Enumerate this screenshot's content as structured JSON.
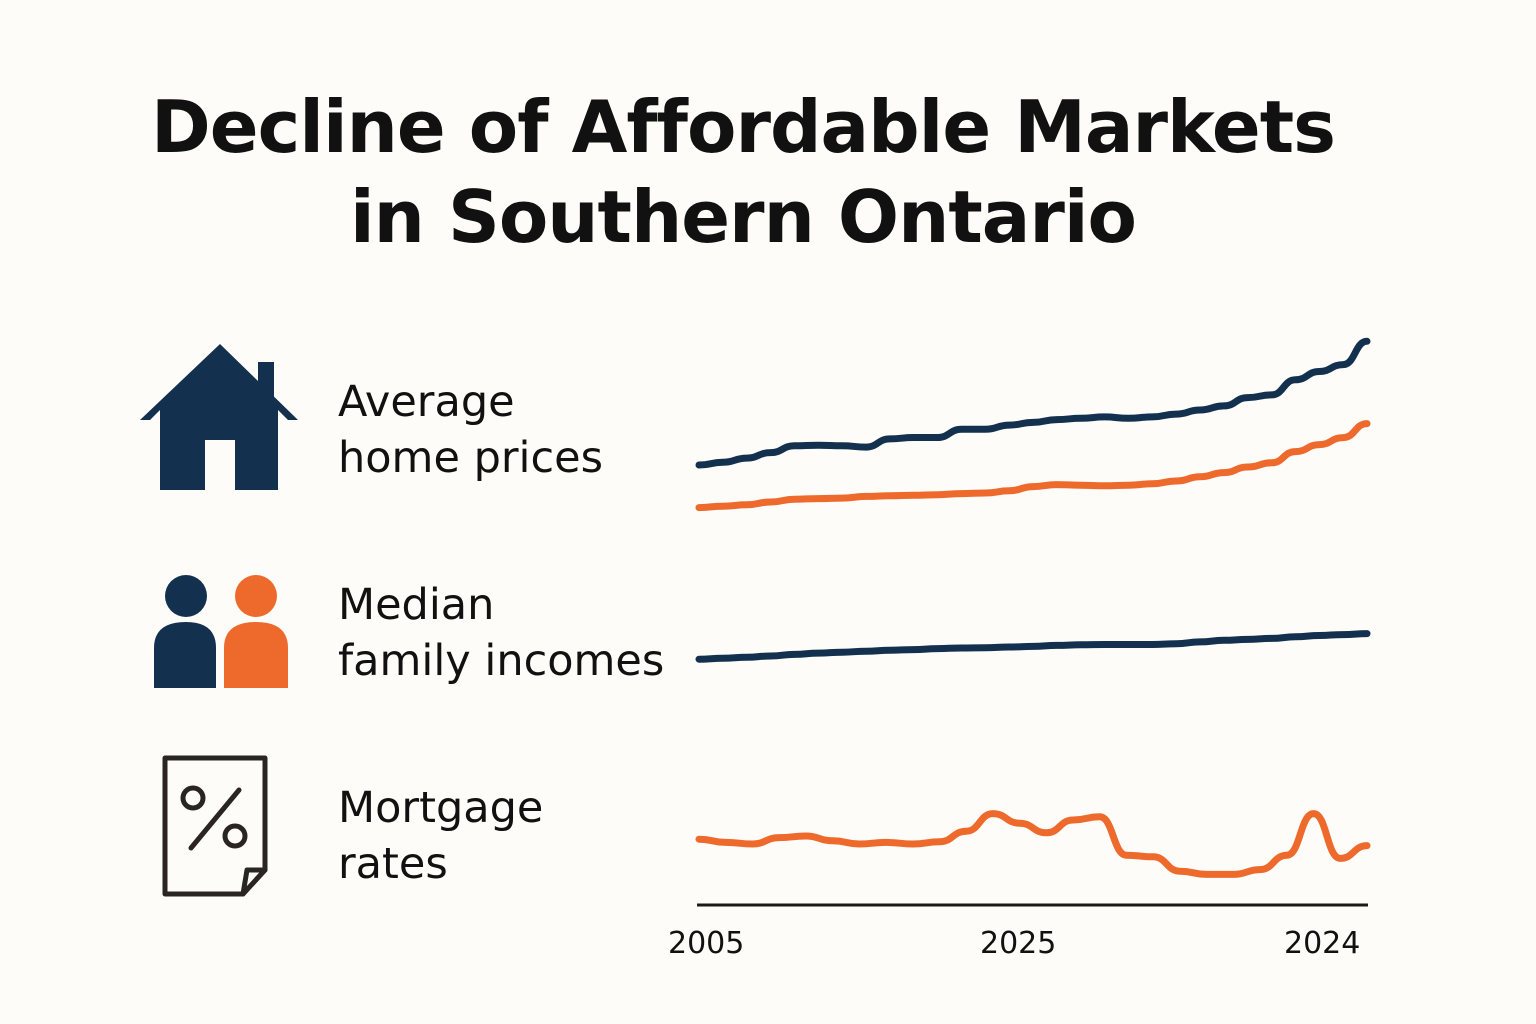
{
  "title": {
    "line1": "Decline of Affordable Markets",
    "line2": "in Southern Ontario"
  },
  "colors": {
    "navy": "#13304f",
    "orange": "#ee6a2c",
    "axis": "#1a1a1a",
    "text": "#111111"
  },
  "rows": [
    {
      "icon": "house-icon",
      "label_line1": "Average",
      "label_line2": "home prices"
    },
    {
      "icon": "family-icon",
      "label_line1": "Median",
      "label_line2": "family incomes"
    },
    {
      "icon": "percent-document-icon",
      "label_line1": "Mortgage",
      "label_line2": "rates"
    }
  ],
  "chart_data": {
    "type": "line",
    "title": "Decline of Affordable Markets in Southern Ontario",
    "x_tick_labels": [
      "2005",
      "2025",
      "2024"
    ],
    "y_axis": "none (unlabeled, relative index)",
    "series": [
      {
        "name": "Average home prices",
        "color": "navy",
        "values": [
          12,
          13,
          14.5,
          16.5,
          19,
          19.2,
          19,
          18.5,
          21.5,
          22,
          22,
          25,
          25,
          26.5,
          27.5,
          28.5,
          29,
          29.5,
          29,
          29.5,
          30.5,
          32,
          33.5,
          36.5,
          37.5,
          43,
          46,
          48.5,
          57
        ]
      },
      {
        "name": "Average home prices (second series)",
        "color": "orange",
        "values": [
          8,
          8.5,
          9,
          10,
          11,
          11.2,
          11.4,
          12,
          12.2,
          12.4,
          12.6,
          13,
          13.2,
          14,
          15.5,
          16.2,
          16,
          15.8,
          16,
          16.5,
          17.5,
          19,
          20.5,
          22.5,
          24,
          28,
          30.5,
          33,
          38
        ]
      },
      {
        "name": "Median family incomes",
        "color": "navy",
        "values": [
          4,
          4.3,
          4.6,
          5,
          5.5,
          5.9,
          6.2,
          6.5,
          6.8,
          7,
          7.3,
          7.5,
          7.6,
          7.8,
          8,
          8.3,
          8.5,
          8.6,
          8.6,
          8.6,
          8.8,
          9.4,
          9.9,
          10.2,
          10.5,
          11,
          11.4,
          11.7,
          12
        ]
      },
      {
        "name": "Mortgage rates",
        "color": "orange",
        "values": [
          24,
          23,
          22.5,
          24.5,
          25,
          23.5,
          22.5,
          23,
          22.5,
          23.2,
          26.5,
          32,
          29,
          26,
          30,
          31,
          19,
          18.5,
          14,
          13,
          13,
          14.5,
          19,
          32,
          18,
          22
        ]
      }
    ]
  }
}
